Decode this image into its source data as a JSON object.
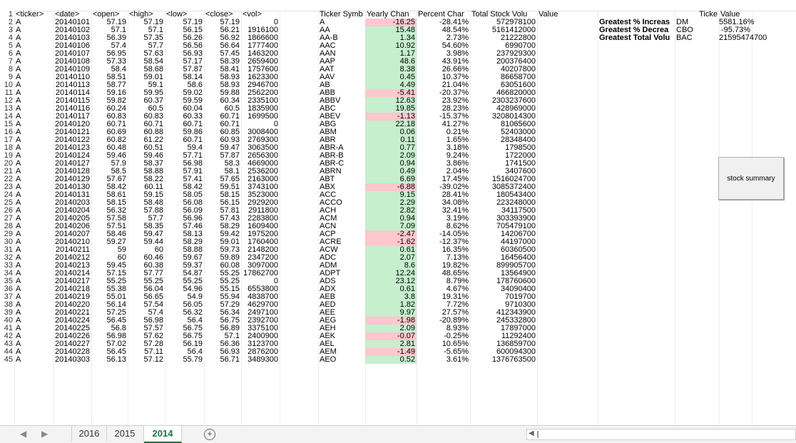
{
  "raw_headers": [
    "<ticker>",
    "<date>",
    "<open>",
    "<high>",
    "<low>",
    "<close>",
    "<vol>"
  ],
  "raw_rows": [
    [
      "A",
      "20140101",
      "57.19",
      "57.19",
      "57.19",
      "57.19",
      "0"
    ],
    [
      "A",
      "20140102",
      "57.1",
      "57.1",
      "56.15",
      "56.21",
      "1916100"
    ],
    [
      "A",
      "20140103",
      "56.39",
      "57.35",
      "56.26",
      "56.92",
      "1866600"
    ],
    [
      "A",
      "20140106",
      "57.4",
      "57.7",
      "56.56",
      "56.64",
      "1777400"
    ],
    [
      "A",
      "20140107",
      "56.95",
      "57.63",
      "56.93",
      "57.45",
      "1463200"
    ],
    [
      "A",
      "20140108",
      "57.33",
      "58.54",
      "57.17",
      "58.39",
      "2659400"
    ],
    [
      "A",
      "20140109",
      "58.4",
      "58.68",
      "57.87",
      "58.41",
      "1757600"
    ],
    [
      "A",
      "20140110",
      "58.51",
      "59.01",
      "58.14",
      "58.93",
      "1623300"
    ],
    [
      "A",
      "20140113",
      "58.77",
      "59.1",
      "58.6",
      "58.93",
      "2946700"
    ],
    [
      "A",
      "20140114",
      "59.16",
      "59.95",
      "59.02",
      "59.88",
      "2562200"
    ],
    [
      "A",
      "20140115",
      "59.82",
      "60.37",
      "59.59",
      "60.34",
      "2335100"
    ],
    [
      "A",
      "20140116",
      "60.24",
      "60.5",
      "60.04",
      "60.5",
      "1835900"
    ],
    [
      "A",
      "20140117",
      "60.83",
      "60.83",
      "60.33",
      "60.71",
      "1699500"
    ],
    [
      "A",
      "20140120",
      "60.71",
      "60.71",
      "60.71",
      "60.71",
      "0"
    ],
    [
      "A",
      "20140121",
      "60.69",
      "60.88",
      "59.86",
      "60.85",
      "3008400"
    ],
    [
      "A",
      "20140122",
      "60.82",
      "61.22",
      "60.71",
      "60.93",
      "2769300"
    ],
    [
      "A",
      "20140123",
      "60.48",
      "60.51",
      "59.4",
      "59.47",
      "3063500"
    ],
    [
      "A",
      "20140124",
      "59.46",
      "59.46",
      "57.71",
      "57.87",
      "2656300"
    ],
    [
      "A",
      "20140127",
      "57.9",
      "58.37",
      "56.98",
      "58.3",
      "4669000"
    ],
    [
      "A",
      "20140128",
      "58.5",
      "58.88",
      "57.91",
      "58.1",
      "2536200"
    ],
    [
      "A",
      "20140129",
      "57.67",
      "58.22",
      "57.41",
      "57.65",
      "2163000"
    ],
    [
      "A",
      "20140130",
      "58.42",
      "60.11",
      "58.42",
      "59.51",
      "3743100"
    ],
    [
      "A",
      "20140131",
      "58.61",
      "59.15",
      "58.05",
      "58.15",
      "3523000"
    ],
    [
      "A",
      "20140203",
      "58.15",
      "58.48",
      "56.08",
      "56.15",
      "2929200"
    ],
    [
      "A",
      "20140204",
      "56.32",
      "57.88",
      "56.09",
      "57.81",
      "2911800"
    ],
    [
      "A",
      "20140205",
      "57.58",
      "57.7",
      "56.96",
      "57.43",
      "2283800"
    ],
    [
      "A",
      "20140206",
      "57.51",
      "58.35",
      "57.46",
      "58.29",
      "1609400"
    ],
    [
      "A",
      "20140207",
      "58.46",
      "59.47",
      "58.13",
      "59.42",
      "1975200"
    ],
    [
      "A",
      "20140210",
      "59.27",
      "59.44",
      "58.29",
      "59.01",
      "1760400"
    ],
    [
      "A",
      "20140211",
      "59",
      "60",
      "58.88",
      "59.73",
      "2148200"
    ],
    [
      "A",
      "20140212",
      "60",
      "60.46",
      "59.67",
      "59.89",
      "2347200"
    ],
    [
      "A",
      "20140213",
      "59.45",
      "60.38",
      "59.37",
      "60.08",
      "3097000"
    ],
    [
      "A",
      "20140214",
      "57.15",
      "57.77",
      "54.87",
      "55.25",
      "17862700"
    ],
    [
      "A",
      "20140217",
      "55.25",
      "55.25",
      "55.25",
      "55.25",
      "0"
    ],
    [
      "A",
      "20140218",
      "55.38",
      "56.04",
      "54.96",
      "55.15",
      "6553800"
    ],
    [
      "A",
      "20140219",
      "55.01",
      "56.65",
      "54.9",
      "55.94",
      "4838700"
    ],
    [
      "A",
      "20140220",
      "56.14",
      "57.54",
      "56.05",
      "57.29",
      "4629700"
    ],
    [
      "A",
      "20140221",
      "57.25",
      "57.4",
      "56.32",
      "56.34",
      "2497100"
    ],
    [
      "A",
      "20140224",
      "56.45",
      "56.98",
      "56.4",
      "56.75",
      "2392700"
    ],
    [
      "A",
      "20140225",
      "56.8",
      "57.57",
      "56.75",
      "56.89",
      "3375100"
    ],
    [
      "A",
      "20140226",
      "56.98",
      "57.62",
      "56.75",
      "57.1",
      "2400900"
    ],
    [
      "A",
      "20140227",
      "57.02",
      "57.28",
      "56.19",
      "56.36",
      "3123700"
    ],
    [
      "A",
      "20140228",
      "56.45",
      "57.11",
      "56.4",
      "56.93",
      "2876200"
    ],
    [
      "A",
      "20140303",
      "56.13",
      "57.12",
      "55.79",
      "56.71",
      "3489300"
    ]
  ],
  "summary_headers": [
    "Ticker Symb",
    "Yearly Chan",
    "Percent Char",
    "Total Stock Volu",
    "Value"
  ],
  "summary_rows": [
    {
      "ticker": "A",
      "change": "-16.25",
      "percent": "-28.41%",
      "volume": "572978100",
      "status": "red"
    },
    {
      "ticker": "AA",
      "change": "15.48",
      "percent": "48.54%",
      "volume": "5161412000",
      "status": "green"
    },
    {
      "ticker": "AA-B",
      "change": "1.34",
      "percent": "2.73%",
      "volume": "21222800",
      "status": "green"
    },
    {
      "ticker": "AAC",
      "change": "10.92",
      "percent": "54.60%",
      "volume": "6990700",
      "status": "green"
    },
    {
      "ticker": "AAN",
      "change": "1.17",
      "percent": "3.98%",
      "volume": "237929300",
      "status": "green"
    },
    {
      "ticker": "AAP",
      "change": "48.6",
      "percent": "43.91%",
      "volume": "200376400",
      "status": "green"
    },
    {
      "ticker": "AAT",
      "change": "8.38",
      "percent": "26.66%",
      "volume": "40207800",
      "status": "green"
    },
    {
      "ticker": "AAV",
      "change": "0.45",
      "percent": "10.37%",
      "volume": "86658700",
      "status": "green"
    },
    {
      "ticker": "AB",
      "change": "4.49",
      "percent": "21.04%",
      "volume": "63051600",
      "status": "green"
    },
    {
      "ticker": "ABB",
      "change": "-5.41",
      "percent": "-20.37%",
      "volume": "466820000",
      "status": "red"
    },
    {
      "ticker": "ABBV",
      "change": "12.63",
      "percent": "23.92%",
      "volume": "2303237600",
      "status": "green"
    },
    {
      "ticker": "ABC",
      "change": "19.85",
      "percent": "28.23%",
      "volume": "428969000",
      "status": "green"
    },
    {
      "ticker": "ABEV",
      "change": "-1.13",
      "percent": "-15.37%",
      "volume": "3208014300",
      "status": "red"
    },
    {
      "ticker": "ABG",
      "change": "22.18",
      "percent": "41.27%",
      "volume": "81065600",
      "status": "green"
    },
    {
      "ticker": "ABM",
      "change": "0.06",
      "percent": "0.21%",
      "volume": "52403000",
      "status": "green"
    },
    {
      "ticker": "ABR",
      "change": "0.11",
      "percent": "1.65%",
      "volume": "28348400",
      "status": "green"
    },
    {
      "ticker": "ABR-A",
      "change": "0.77",
      "percent": "3.18%",
      "volume": "1798500",
      "status": "green"
    },
    {
      "ticker": "ABR-B",
      "change": "2.09",
      "percent": "9.24%",
      "volume": "1722000",
      "status": "green"
    },
    {
      "ticker": "ABR-C",
      "change": "0.94",
      "percent": "3.86%",
      "volume": "1741500",
      "status": "green"
    },
    {
      "ticker": "ABRN",
      "change": "0.49",
      "percent": "2.04%",
      "volume": "3407600",
      "status": "green"
    },
    {
      "ticker": "ABT",
      "change": "6.69",
      "percent": "17.45%",
      "volume": "1516024700",
      "status": "green"
    },
    {
      "ticker": "ABX",
      "change": "-6.88",
      "percent": "-39.02%",
      "volume": "3085372400",
      "status": "red"
    },
    {
      "ticker": "ACC",
      "change": "9.15",
      "percent": "28.41%",
      "volume": "180543400",
      "status": "green"
    },
    {
      "ticker": "ACCO",
      "change": "2.29",
      "percent": "34.08%",
      "volume": "223248000",
      "status": "green"
    },
    {
      "ticker": "ACH",
      "change": "2.82",
      "percent": "32.41%",
      "volume": "34117500",
      "status": "green"
    },
    {
      "ticker": "ACM",
      "change": "0.94",
      "percent": "3.19%",
      "volume": "303393900",
      "status": "green"
    },
    {
      "ticker": "ACN",
      "change": "7.09",
      "percent": "8.62%",
      "volume": "705479100",
      "status": "green"
    },
    {
      "ticker": "ACP",
      "change": "-2.47",
      "percent": "-14.05%",
      "volume": "14206700",
      "status": "red"
    },
    {
      "ticker": "ACRE",
      "change": "-1.62",
      "percent": "-12.37%",
      "volume": "44197000",
      "status": "red"
    },
    {
      "ticker": "ACW",
      "change": "0.61",
      "percent": "16.35%",
      "volume": "60360500",
      "status": "green"
    },
    {
      "ticker": "ADC",
      "change": "2.07",
      "percent": "7.13%",
      "volume": "16456400",
      "status": "green"
    },
    {
      "ticker": "ADM",
      "change": "8.6",
      "percent": "19.82%",
      "volume": "899905700",
      "status": "green"
    },
    {
      "ticker": "ADPT",
      "change": "12.24",
      "percent": "48.65%",
      "volume": "13564900",
      "status": "green"
    },
    {
      "ticker": "ADS",
      "change": "23.12",
      "percent": "8.79%",
      "volume": "178760600",
      "status": "green"
    },
    {
      "ticker": "ADX",
      "change": "0.61",
      "percent": "4.67%",
      "volume": "34090400",
      "status": "green"
    },
    {
      "ticker": "AEB",
      "change": "3.8",
      "percent": "19.31%",
      "volume": "7019700",
      "status": "green"
    },
    {
      "ticker": "AED",
      "change": "1.82",
      "percent": "7.72%",
      "volume": "9710300",
      "status": "green"
    },
    {
      "ticker": "AEE",
      "change": "9.97",
      "percent": "27.57%",
      "volume": "412343900",
      "status": "green"
    },
    {
      "ticker": "AEG",
      "change": "-1.98",
      "percent": "-20.89%",
      "volume": "245332800",
      "status": "red"
    },
    {
      "ticker": "AEH",
      "change": "2.09",
      "percent": "8.93%",
      "volume": "17897000",
      "status": "green"
    },
    {
      "ticker": "AEK",
      "change": "-0.07",
      "percent": "-0.25%",
      "volume": "11292400",
      "status": "red"
    },
    {
      "ticker": "AEL",
      "change": "2.81",
      "percent": "10.65%",
      "volume": "136859700",
      "status": "green"
    },
    {
      "ticker": "AEM",
      "change": "-1.49",
      "percent": "-5.65%",
      "volume": "600094300",
      "status": "red"
    },
    {
      "ticker": "AEO",
      "change": "0.52",
      "percent": "3.61%",
      "volume": "1376763500",
      "status": "green"
    }
  ],
  "greatest_headers": [
    "Ticke",
    "Value"
  ],
  "greatest": [
    {
      "label": "Greatest % Increas",
      "ticker": "DM",
      "value": "5581.16%"
    },
    {
      "label": "Greatest % Decrea",
      "ticker": "CBO",
      "value": "-95.73%"
    },
    {
      "label": "Greatest Total Volu",
      "ticker": "BAC",
      "value": "21595474700"
    }
  ],
  "button_label": "stock summary",
  "tabs": [
    "2016",
    "2015",
    "2014"
  ],
  "active_tab": "2014",
  "colors": {
    "green": "#c6efce",
    "red": "#ffc7ce",
    "active_tab": "#217346"
  }
}
